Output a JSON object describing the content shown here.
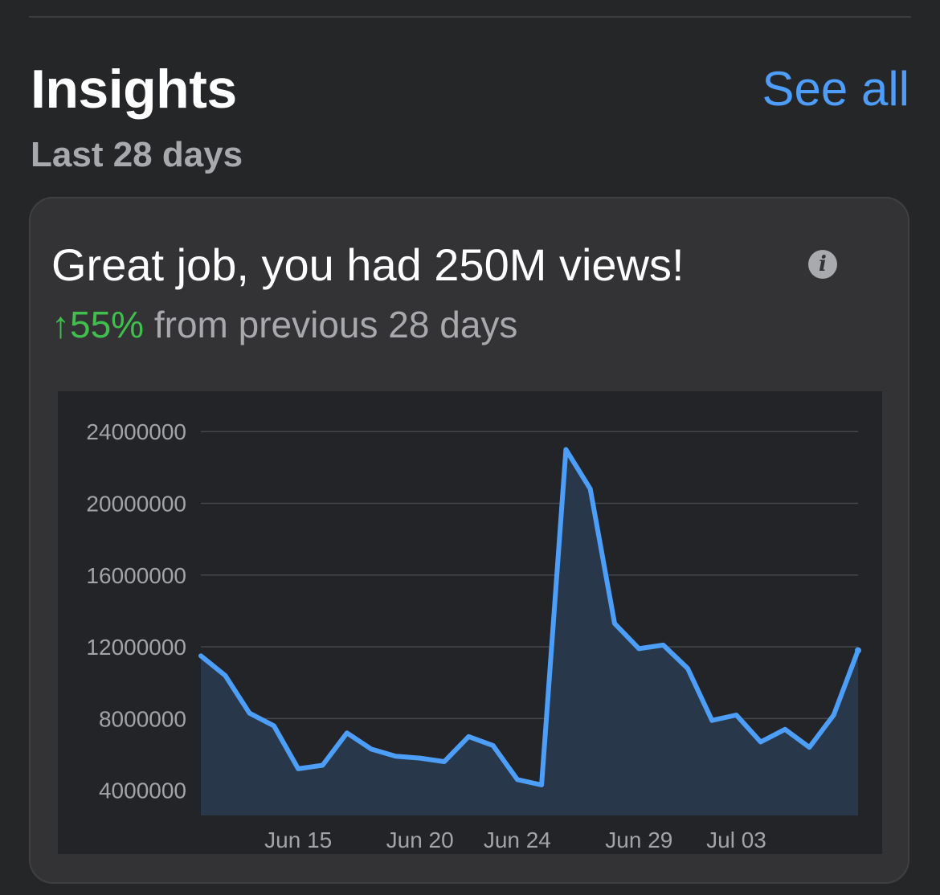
{
  "insights": {
    "title": "Insights",
    "see_all_label": "See all",
    "period": "Last 28 days"
  },
  "card": {
    "headline": "Great job, you had 250M views!",
    "info_icon": "info-icon",
    "change_arrow_pct": "↑55%",
    "change_text": " from previous 28 days"
  },
  "colors": {
    "background": "#252628",
    "card": "#333336",
    "accent": "#4e9dfb",
    "positive": "#3fbf4c",
    "line": "#4d9ef9",
    "area": "#28384a"
  },
  "chart_data": {
    "type": "area",
    "x": [
      "Jun 11",
      "Jun 12",
      "Jun 13",
      "Jun 14",
      "Jun 15",
      "Jun 16",
      "Jun 17",
      "Jun 18",
      "Jun 19",
      "Jun 20",
      "Jun 21",
      "Jun 22",
      "Jun 23",
      "Jun 24",
      "Jun 25",
      "Jun 26",
      "Jun 27",
      "Jun 28",
      "Jun 29",
      "Jun 30",
      "Jul 01",
      "Jul 02",
      "Jul 03",
      "Jul 04",
      "Jul 05",
      "Jul 06",
      "Jul 07",
      "Jul 08"
    ],
    "values": [
      11500000,
      10400000,
      8300000,
      7600000,
      5200000,
      5400000,
      7200000,
      6300000,
      5900000,
      5800000,
      5600000,
      7000000,
      6500000,
      4600000,
      4300000,
      23000000,
      20800000,
      13300000,
      11900000,
      12100000,
      10800000,
      7900000,
      8200000,
      6700000,
      7400000,
      6400000,
      8200000,
      11800000
    ],
    "x_ticks": [
      "Jun 15",
      "Jun 20",
      "Jun 24",
      "Jun 29",
      "Jul 03"
    ],
    "y_ticks": [
      "4000000",
      "8000000",
      "12000000",
      "16000000",
      "20000000",
      "24000000"
    ],
    "y_tick_values": [
      4000000,
      8000000,
      12000000,
      16000000,
      20000000,
      24000000
    ],
    "ylim": [
      2600000,
      25800000
    ],
    "grid": true,
    "legend": "none"
  }
}
